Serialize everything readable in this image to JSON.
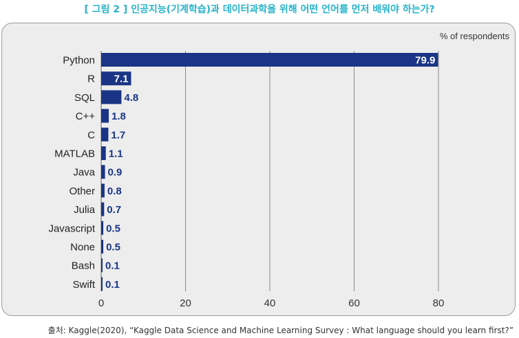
{
  "figure": {
    "title": "[ 그림 2 ] 인공지능(기계학습)과 데이터과학을 위해 어떤 언어를 먼저 배워야 하는가?",
    "unit_label": "% of respondents",
    "source": "출처: Kaggle(2020), “Kaggle Data Science and Machine Learning Survey : What language should you learn first?”"
  },
  "colors": {
    "bar": "#1a3585",
    "value_label": "#1a3585",
    "title": "#27b3c9",
    "panel": "#ededed",
    "grid": "#8a8a8a"
  },
  "chart_data": {
    "type": "bar",
    "orientation": "horizontal",
    "categories": [
      "Python",
      "R",
      "SQL",
      "C++",
      "C",
      "MATLAB",
      "Java",
      "Other",
      "Julia",
      "Javascript",
      "None",
      "Bash",
      "Swift"
    ],
    "values": [
      79.9,
      7.1,
      4.8,
      1.8,
      1.7,
      1.1,
      0.9,
      0.8,
      0.7,
      0.5,
      0.5,
      0.1,
      0.1
    ],
    "value_labels": [
      "79.9",
      "7.1",
      "4.8",
      "1.8",
      "1.7",
      "1.1",
      "0.9",
      "0.8",
      "0.7",
      "0.5",
      "0.5",
      "0.1",
      "0.1"
    ],
    "xlim": [
      0,
      80
    ],
    "xticks": [
      0,
      20,
      40,
      60,
      80
    ],
    "xtick_labels": [
      "0",
      "20",
      "40",
      "60",
      "80"
    ],
    "grid": "vertical"
  }
}
